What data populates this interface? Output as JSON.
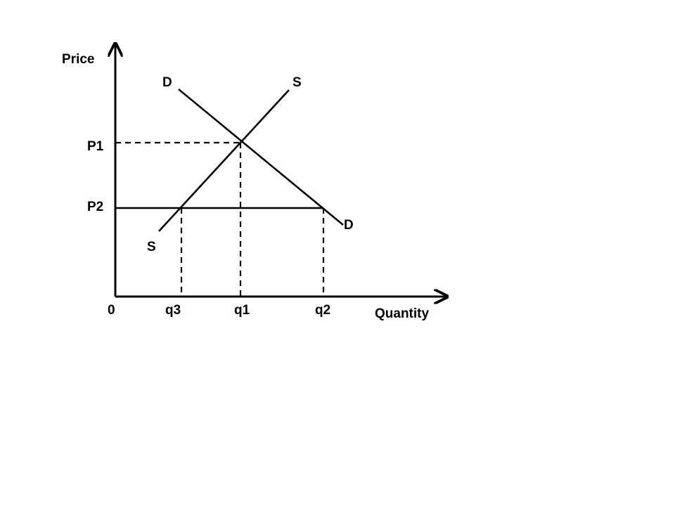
{
  "axes": {
    "y_label": "Price",
    "x_label": "Quantity",
    "origin_label": "0"
  },
  "curves": {
    "demand": {
      "label_top": "D",
      "label_bottom": "D"
    },
    "supply": {
      "label_top": "S",
      "label_bottom": "S"
    }
  },
  "price_levels": [
    "P1",
    "P2"
  ],
  "quantity_levels": [
    "q3",
    "q1",
    "q2"
  ]
}
